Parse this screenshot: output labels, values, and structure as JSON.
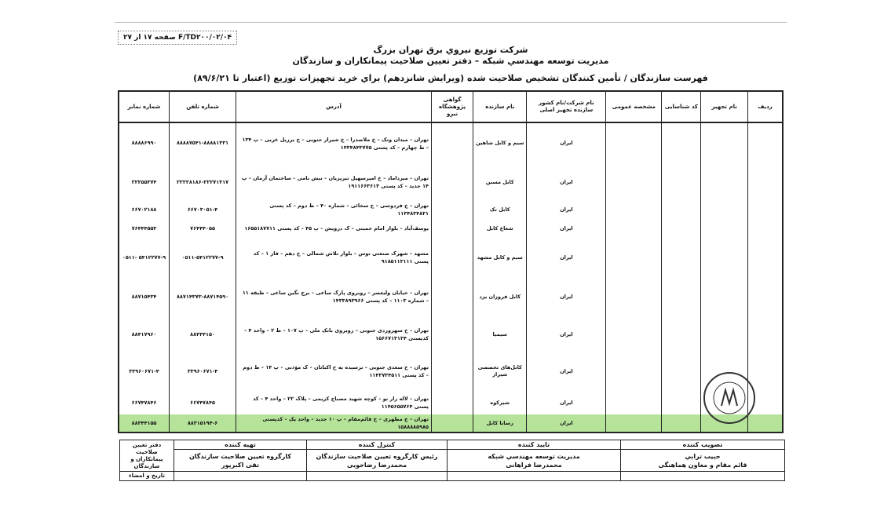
{
  "form_code": "F/TD۲۰۰/۰۲/۰۴ صفحه ۱۷ از ۲۷",
  "header": {
    "company": "شرکت توزیع نیروي برق تهران بزرگ",
    "department": "مدیریت توسعه مهندسي شبکه – دفتر تعیین صلاحیت پیمانکاران و سازندگان",
    "title": "فهرست سازندگان / تأمین کنندگان تشخیص صلاحیت شده (ویرایش شانزدهم) براي خرید تجهیزات توزیع (اعتبار تا ۸۹/۶/۲۱)"
  },
  "columns": [
    "ردیف",
    "نام تجهیز",
    "کد شناسایی",
    "مشخصه عمومی",
    "نام شرکت/نام کشور سازنده تجهیز اصلی",
    "نام سازنده",
    "گواهی پژوهشگاه نیرو",
    "آدرس",
    "شماره تلفن",
    "شماره نمابر"
  ],
  "rows": [
    {
      "country": "ایران",
      "maker": "سیم و کابل شاهین",
      "address": "تهران – میدان ونک – خ ملاصدرا – خ شیراز جنوبی – خ برزیل غربی – پ ۱۳۴ – ط چهارم – کد پستی ۱۴۳۴۸۴۳۷۷۵",
      "phone": "۸۸۸۸۷۵۴۱-۸۸۸۸۱۳۳۱",
      "fax": "۸۸۸۸۶۹۹۰"
    },
    {
      "country": "ایران",
      "maker": "کابل مسین",
      "address": "تهران – میرداماد – خ امیرسهیل تبریزیان – نبش نامی – ساختمان آرمان – پ ۱۴ جدید – کد پستی ۱۹۱۱۶۶۳۶۱۳",
      "phone": "۲۲۲۲۸۱۸۶-۲۲۲۷۱۳۱۷",
      "fax": "۲۲۲۵۵۳۷۴"
    },
    {
      "country": "ایران",
      "maker": "کابل تک",
      "address": "تهران – خ فردوسی – خ سخائی – شماره ۴۰ – ط دوم – کد پستی ۱۱۳۴۸۳۴۸۳۱",
      "phone": "۶۶۷۰۳۰۵۱-۴",
      "fax": "۶۶۷۰۲۱۸۸"
    },
    {
      "country": "ایران",
      "maker": "شعاع کابل",
      "address": "یوسف‌آباد – بلوار امام خمینی – ک درویش – پ ۴۵ – کد پستی ۱۶۵۵۱۸۷۷۱۱",
      "phone": "۷۶۴۴۴۰۵۵",
      "fax": "۷۶۴۴۴۵۵۳"
    },
    {
      "country": "ایران",
      "maker": "سیم و کابل مشهد",
      "address": "مشهد – شهرک صنعتی توس – بلوار تلاش شمالی – خ دهم – فاز ۱ – کد پستی ۹۱۸۵۱۱۳۱۱۱",
      "phone": "۰۵۱۱-۵۴۱۲۲۷۷-۹",
      "fax": "۵۴۱۲۲۷۷-۹ -۰۵۱۱"
    },
    {
      "country": "ایران",
      "maker": "کابل فروزان یزد",
      "address": "تهران – خیابان ولیعصر – روبروی پارک ساعی – برج نگین ساعی – طبقه ۱۱ – شماره ۱۱۰۳ – کد پستی ۱۴۳۳۸۹۳۹۶۶",
      "phone": "۸۸۷۱۴۳۷۳-۸۸۷۱۴۵۹۰",
      "fax": "۸۸۷۱۵۴۳۴"
    },
    {
      "country": "ایران",
      "maker": "سیمیا",
      "address": "تهران – خ سهروردی جنوبی – روبروی بانک ملی – پ ۱۰۷ – ط ۲ – واحد ۴ – کدپستی ۱۵۶۶۷۱۳۱۳۴",
      "phone": "۸۸۴۳۴۱۵۰",
      "fax": "۸۸۴۱۷۹۶۰"
    },
    {
      "country": "ایران",
      "maker": "کابل‌های تخصصی شیراز",
      "address": "تهران – خ سعدی جنوبی – نرسیده به خ اکباتان – ک مؤذنی – پ ۱۴ – ط دوم – کد پستی ۱۱۴۳۷۳۴۵۱۱",
      "phone": "۳۳۹۶۰۶۷۱-۴",
      "fax": "۳۳۹۶۰۶۷۱-۴"
    },
    {
      "country": "ایران",
      "maker": "شیرکوه",
      "address": "تهران – لاله زار نو – کوچه شهید مصباح کریمی – پلاک ۲۲ – واحد ۴ – کد پستی ۱۱۴۵۶۵۵۷۶۴",
      "phone": "۶۶۷۴۷۸۴۵",
      "fax": "۶۶۷۴۷۸۴۶"
    },
    {
      "country": "ایران",
      "maker": "رسانا کابل",
      "address": "تهران – خ مطهری – خ قائم‌مقام – پ ۱۰ جدید – واحد یک – کدپستی ۱۵۸۸۸۸۵۹۸۵",
      "phone": "۸۸۳۱۵۱۹۴-۶",
      "fax": "۸۸۳۴۴۱۵۵",
      "highlighted": true
    }
  ],
  "highlight_color": "#b6e39a",
  "footer": {
    "approver": {
      "label": "تصویب کننده",
      "name": "حبیب ترابي",
      "title": "قائم مقام و معاون هماهنگی"
    },
    "confirmer": {
      "label": "تایید کننده",
      "title": "مدیریت توسعه مهندسي شبکه",
      "name": "محمدرضا فراهانی"
    },
    "controller": {
      "label": "کنترل کننده",
      "title": "رئیس کارگروه تعیین صلاحیت سازندگان",
      "name": "محمدرضا رضاخویی"
    },
    "preparer": {
      "label": "تهیه کننده",
      "title": "کارگروه تعیین صلاحیت سازندگان",
      "name": "تقی اکبرپور"
    },
    "office": "دفتر تعیین صلاحیت پیمانکاران و سازندگان",
    "date_sign": "تاریخ و امضاء"
  },
  "stamp_text": "شرکت توزیع نیروی برق تهران بزرگ"
}
